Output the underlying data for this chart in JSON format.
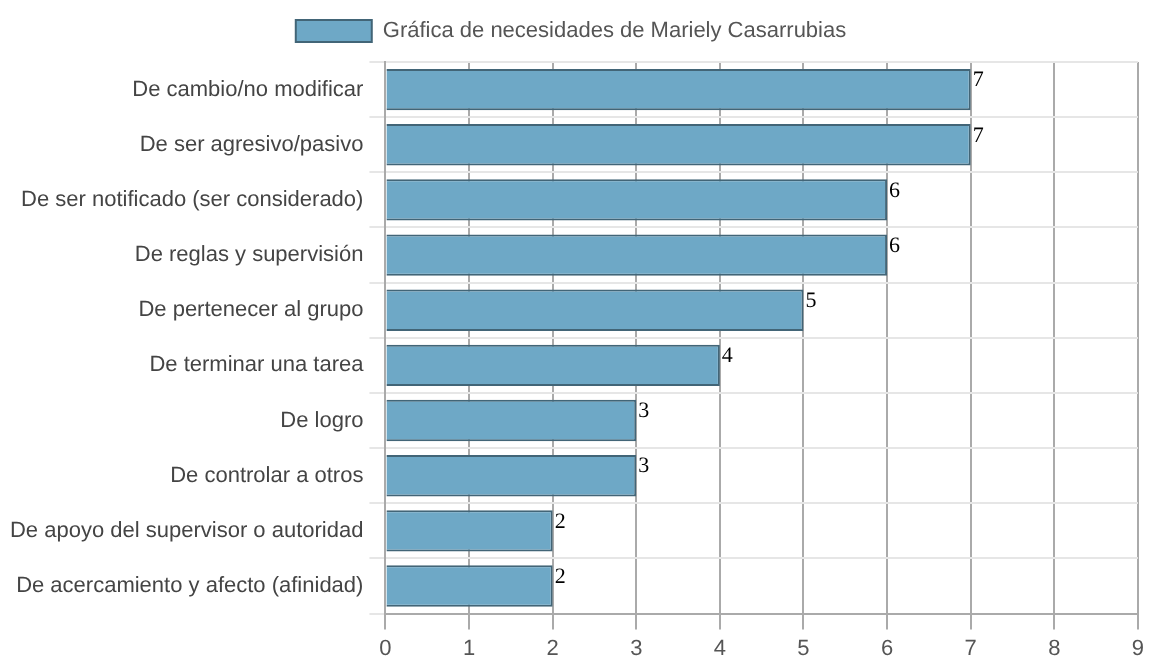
{
  "chart_data": {
    "type": "bar",
    "orientation": "horizontal",
    "legend": "top",
    "categories": [
      "De cambio/no modificar",
      "De ser agresivo/pasivo",
      "De ser notificado (ser considerado)",
      "De reglas y supervisión",
      "De pertenecer al grupo",
      "De terminar una tarea",
      "De logro",
      "De controlar a otros",
      "De apoyo del supervisor o autoridad",
      "De acercamiento y afecto (afinidad)"
    ],
    "series": [
      {
        "name": "Gráfica de necesidades de Mariely Casarrubias",
        "color": "#6ea8c6",
        "values": [
          7,
          7,
          6,
          6,
          5,
          4,
          3,
          3,
          2,
          2
        ]
      }
    ],
    "xlim": [
      0,
      9
    ],
    "xticks": [
      0,
      1,
      2,
      3,
      4,
      5,
      6,
      7,
      8,
      9
    ],
    "grid": true,
    "data_labels": true
  }
}
